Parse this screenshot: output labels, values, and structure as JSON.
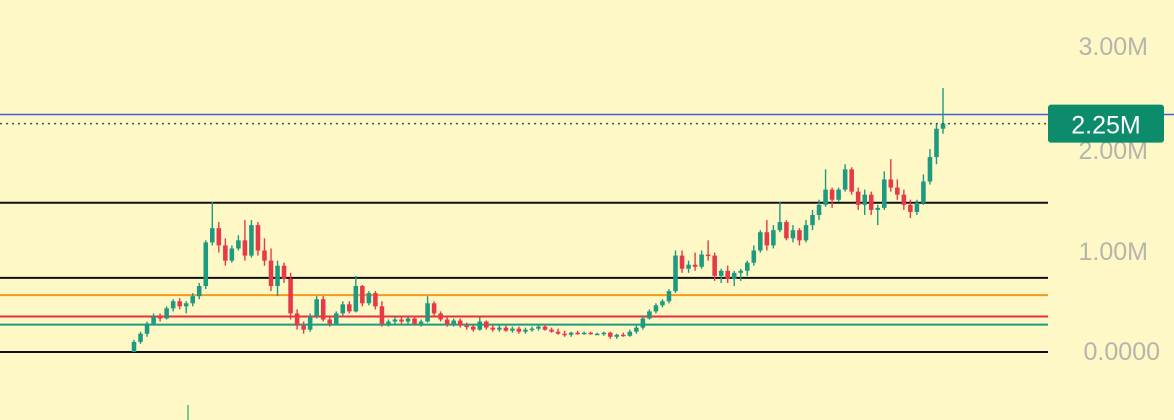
{
  "colors": {
    "background": "#fdf8c6",
    "up": "#1e9a80",
    "down": "#e63a48",
    "axis_text": "#b6b5ad",
    "current_price_line": "#3f63d8",
    "current_price_dots": "#1c6b52",
    "price_badge": "#0d8c6c",
    "level_black": "#111111",
    "level_orange": "#f59a1c",
    "level_red": "#e6303a",
    "level_green": "#1e9a80"
  },
  "chart_data": {
    "type": "candlestick",
    "ylim": [
      0,
      3.0
    ],
    "y_unit": "M",
    "y_ticks": [
      {
        "label": "3.00M",
        "value": 3.0
      },
      {
        "label": "2.00M",
        "value": 2.0
      },
      {
        "label": "1.00M",
        "value": 1.0
      },
      {
        "label": "0.0000",
        "value": 0.0
      }
    ],
    "current_price": {
      "label": "2.25M",
      "value": 2.25
    },
    "reference_lines": [
      {
        "name": "blue",
        "value": 2.34,
        "color": "#3f63d8",
        "style": "solid"
      },
      {
        "name": "black-1",
        "value": 1.47,
        "color": "#111111",
        "style": "solid"
      },
      {
        "name": "black-2",
        "value": 0.73,
        "color": "#111111",
        "style": "solid"
      },
      {
        "name": "orange",
        "value": 0.56,
        "color": "#f59a1c",
        "style": "solid"
      },
      {
        "name": "red",
        "value": 0.35,
        "color": "#e6303a",
        "style": "solid"
      },
      {
        "name": "green",
        "value": 0.27,
        "color": "#1e9a80",
        "style": "solid"
      },
      {
        "name": "black-3",
        "value": 0.0,
        "color": "#111111",
        "style": "solid"
      }
    ],
    "candles": [
      {
        "o": 0.0,
        "h": 0.12,
        "l": 0.0,
        "c": 0.1
      },
      {
        "o": 0.1,
        "h": 0.2,
        "l": 0.08,
        "c": 0.18
      },
      {
        "o": 0.18,
        "h": 0.3,
        "l": 0.15,
        "c": 0.28
      },
      {
        "o": 0.28,
        "h": 0.38,
        "l": 0.26,
        "c": 0.35
      },
      {
        "o": 0.35,
        "h": 0.38,
        "l": 0.3,
        "c": 0.33
      },
      {
        "o": 0.33,
        "h": 0.45,
        "l": 0.32,
        "c": 0.43
      },
      {
        "o": 0.43,
        "h": 0.52,
        "l": 0.4,
        "c": 0.5
      },
      {
        "o": 0.5,
        "h": 0.53,
        "l": 0.42,
        "c": 0.45
      },
      {
        "o": 0.45,
        "h": 0.5,
        "l": 0.38,
        "c": 0.48
      },
      {
        "o": 0.48,
        "h": 0.58,
        "l": 0.45,
        "c": 0.55
      },
      {
        "o": 0.55,
        "h": 0.68,
        "l": 0.52,
        "c": 0.65
      },
      {
        "o": 0.65,
        "h": 1.1,
        "l": 0.62,
        "c": 1.08
      },
      {
        "o": 1.08,
        "h": 1.48,
        "l": 1.05,
        "c": 1.22
      },
      {
        "o": 1.22,
        "h": 1.28,
        "l": 0.98,
        "c": 1.05
      },
      {
        "o": 1.05,
        "h": 1.12,
        "l": 0.85,
        "c": 0.9
      },
      {
        "o": 0.9,
        "h": 1.05,
        "l": 0.88,
        "c": 1.02
      },
      {
        "o": 1.02,
        "h": 1.15,
        "l": 1.0,
        "c": 1.1
      },
      {
        "o": 1.1,
        "h": 1.3,
        "l": 0.9,
        "c": 0.95
      },
      {
        "o": 0.95,
        "h": 1.3,
        "l": 0.93,
        "c": 1.25
      },
      {
        "o": 1.25,
        "h": 1.28,
        "l": 0.95,
        "c": 1.0
      },
      {
        "o": 1.0,
        "h": 1.12,
        "l": 0.85,
        "c": 0.9
      },
      {
        "o": 0.9,
        "h": 1.02,
        "l": 0.6,
        "c": 0.65
      },
      {
        "o": 0.65,
        "h": 0.9,
        "l": 0.55,
        "c": 0.85
      },
      {
        "o": 0.85,
        "h": 0.88,
        "l": 0.68,
        "c": 0.72
      },
      {
        "o": 0.72,
        "h": 0.78,
        "l": 0.32,
        "c": 0.38
      },
      {
        "o": 0.38,
        "h": 0.42,
        "l": 0.22,
        "c": 0.26
      },
      {
        "o": 0.26,
        "h": 0.3,
        "l": 0.18,
        "c": 0.22
      },
      {
        "o": 0.22,
        "h": 0.38,
        "l": 0.2,
        "c": 0.35
      },
      {
        "o": 0.35,
        "h": 0.55,
        "l": 0.33,
        "c": 0.52
      },
      {
        "o": 0.52,
        "h": 0.55,
        "l": 0.3,
        "c": 0.32
      },
      {
        "o": 0.32,
        "h": 0.36,
        "l": 0.25,
        "c": 0.28
      },
      {
        "o": 0.28,
        "h": 0.4,
        "l": 0.27,
        "c": 0.38
      },
      {
        "o": 0.38,
        "h": 0.5,
        "l": 0.36,
        "c": 0.47
      },
      {
        "o": 0.47,
        "h": 0.5,
        "l": 0.38,
        "c": 0.4
      },
      {
        "o": 0.4,
        "h": 0.75,
        "l": 0.39,
        "c": 0.65
      },
      {
        "o": 0.65,
        "h": 0.66,
        "l": 0.45,
        "c": 0.48
      },
      {
        "o": 0.48,
        "h": 0.6,
        "l": 0.46,
        "c": 0.58
      },
      {
        "o": 0.58,
        "h": 0.6,
        "l": 0.42,
        "c": 0.45
      },
      {
        "o": 0.45,
        "h": 0.5,
        "l": 0.25,
        "c": 0.28
      },
      {
        "o": 0.28,
        "h": 0.32,
        "l": 0.25,
        "c": 0.3
      },
      {
        "o": 0.3,
        "h": 0.35,
        "l": 0.27,
        "c": 0.32
      },
      {
        "o": 0.32,
        "h": 0.35,
        "l": 0.28,
        "c": 0.3
      },
      {
        "o": 0.3,
        "h": 0.34,
        "l": 0.27,
        "c": 0.33
      },
      {
        "o": 0.33,
        "h": 0.36,
        "l": 0.26,
        "c": 0.28
      },
      {
        "o": 0.28,
        "h": 0.32,
        "l": 0.25,
        "c": 0.3
      },
      {
        "o": 0.3,
        "h": 0.55,
        "l": 0.29,
        "c": 0.48
      },
      {
        "o": 0.48,
        "h": 0.5,
        "l": 0.35,
        "c": 0.38
      },
      {
        "o": 0.38,
        "h": 0.4,
        "l": 0.3,
        "c": 0.32
      },
      {
        "o": 0.32,
        "h": 0.35,
        "l": 0.25,
        "c": 0.27
      },
      {
        "o": 0.27,
        "h": 0.33,
        "l": 0.25,
        "c": 0.31
      },
      {
        "o": 0.31,
        "h": 0.33,
        "l": 0.24,
        "c": 0.26
      },
      {
        "o": 0.26,
        "h": 0.29,
        "l": 0.22,
        "c": 0.25
      },
      {
        "o": 0.25,
        "h": 0.27,
        "l": 0.2,
        "c": 0.22
      },
      {
        "o": 0.22,
        "h": 0.34,
        "l": 0.21,
        "c": 0.3
      },
      {
        "o": 0.3,
        "h": 0.31,
        "l": 0.22,
        "c": 0.24
      },
      {
        "o": 0.24,
        "h": 0.27,
        "l": 0.2,
        "c": 0.22
      },
      {
        "o": 0.22,
        "h": 0.26,
        "l": 0.2,
        "c": 0.24
      },
      {
        "o": 0.24,
        "h": 0.26,
        "l": 0.2,
        "c": 0.21
      },
      {
        "o": 0.21,
        "h": 0.25,
        "l": 0.19,
        "c": 0.23
      },
      {
        "o": 0.23,
        "h": 0.25,
        "l": 0.18,
        "c": 0.2
      },
      {
        "o": 0.2,
        "h": 0.24,
        "l": 0.18,
        "c": 0.22
      },
      {
        "o": 0.22,
        "h": 0.25,
        "l": 0.2,
        "c": 0.23
      },
      {
        "o": 0.23,
        "h": 0.27,
        "l": 0.21,
        "c": 0.25
      },
      {
        "o": 0.25,
        "h": 0.27,
        "l": 0.21,
        "c": 0.22
      },
      {
        "o": 0.22,
        "h": 0.24,
        "l": 0.19,
        "c": 0.2
      },
      {
        "o": 0.2,
        "h": 0.23,
        "l": 0.17,
        "c": 0.18
      },
      {
        "o": 0.18,
        "h": 0.21,
        "l": 0.15,
        "c": 0.17
      },
      {
        "o": 0.17,
        "h": 0.2,
        "l": 0.15,
        "c": 0.19
      },
      {
        "o": 0.19,
        "h": 0.21,
        "l": 0.17,
        "c": 0.18
      },
      {
        "o": 0.18,
        "h": 0.2,
        "l": 0.17,
        "c": 0.19
      },
      {
        "o": 0.19,
        "h": 0.2,
        "l": 0.17,
        "c": 0.18
      },
      {
        "o": 0.18,
        "h": 0.19,
        "l": 0.17,
        "c": 0.18
      },
      {
        "o": 0.18,
        "h": 0.2,
        "l": 0.16,
        "c": 0.19
      },
      {
        "o": 0.19,
        "h": 0.2,
        "l": 0.13,
        "c": 0.15
      },
      {
        "o": 0.15,
        "h": 0.18,
        "l": 0.13,
        "c": 0.17
      },
      {
        "o": 0.17,
        "h": 0.19,
        "l": 0.15,
        "c": 0.16
      },
      {
        "o": 0.16,
        "h": 0.22,
        "l": 0.15,
        "c": 0.2
      },
      {
        "o": 0.2,
        "h": 0.26,
        "l": 0.18,
        "c": 0.24
      },
      {
        "o": 0.24,
        "h": 0.36,
        "l": 0.22,
        "c": 0.33
      },
      {
        "o": 0.33,
        "h": 0.42,
        "l": 0.32,
        "c": 0.4
      },
      {
        "o": 0.4,
        "h": 0.48,
        "l": 0.38,
        "c": 0.46
      },
      {
        "o": 0.46,
        "h": 0.52,
        "l": 0.44,
        "c": 0.5
      },
      {
        "o": 0.5,
        "h": 0.62,
        "l": 0.48,
        "c": 0.6
      },
      {
        "o": 0.6,
        "h": 1.0,
        "l": 0.58,
        "c": 0.95
      },
      {
        "o": 0.95,
        "h": 1.0,
        "l": 0.78,
        "c": 0.82
      },
      {
        "o": 0.82,
        "h": 0.9,
        "l": 0.78,
        "c": 0.86
      },
      {
        "o": 0.86,
        "h": 0.98,
        "l": 0.8,
        "c": 0.84
      },
      {
        "o": 0.84,
        "h": 1.0,
        "l": 0.82,
        "c": 0.96
      },
      {
        "o": 0.96,
        "h": 1.1,
        "l": 0.9,
        "c": 0.95
      },
      {
        "o": 0.95,
        "h": 0.98,
        "l": 0.7,
        "c": 0.75
      },
      {
        "o": 0.75,
        "h": 0.82,
        "l": 0.68,
        "c": 0.8
      },
      {
        "o": 0.8,
        "h": 0.85,
        "l": 0.68,
        "c": 0.72
      },
      {
        "o": 0.72,
        "h": 0.8,
        "l": 0.65,
        "c": 0.78
      },
      {
        "o": 0.78,
        "h": 0.82,
        "l": 0.7,
        "c": 0.8
      },
      {
        "o": 0.8,
        "h": 0.9,
        "l": 0.75,
        "c": 0.88
      },
      {
        "o": 0.88,
        "h": 1.05,
        "l": 0.85,
        "c": 1.0
      },
      {
        "o": 1.0,
        "h": 1.2,
        "l": 0.98,
        "c": 1.18
      },
      {
        "o": 1.18,
        "h": 1.3,
        "l": 1.0,
        "c": 1.05
      },
      {
        "o": 1.05,
        "h": 1.25,
        "l": 1.02,
        "c": 1.2
      },
      {
        "o": 1.2,
        "h": 1.48,
        "l": 1.18,
        "c": 1.28
      },
      {
        "o": 1.28,
        "h": 1.3,
        "l": 1.1,
        "c": 1.12
      },
      {
        "o": 1.12,
        "h": 1.25,
        "l": 1.08,
        "c": 1.2
      },
      {
        "o": 1.2,
        "h": 1.22,
        "l": 1.05,
        "c": 1.1
      },
      {
        "o": 1.1,
        "h": 1.3,
        "l": 1.08,
        "c": 1.25
      },
      {
        "o": 1.25,
        "h": 1.4,
        "l": 1.2,
        "c": 1.35
      },
      {
        "o": 1.35,
        "h": 1.5,
        "l": 1.3,
        "c": 1.45
      },
      {
        "o": 1.45,
        "h": 1.8,
        "l": 1.43,
        "c": 1.6
      },
      {
        "o": 1.6,
        "h": 1.62,
        "l": 1.42,
        "c": 1.5
      },
      {
        "o": 1.5,
        "h": 1.62,
        "l": 1.48,
        "c": 1.6
      },
      {
        "o": 1.6,
        "h": 1.85,
        "l": 1.58,
        "c": 1.8
      },
      {
        "o": 1.8,
        "h": 1.82,
        "l": 1.55,
        "c": 1.58
      },
      {
        "o": 1.58,
        "h": 1.62,
        "l": 1.4,
        "c": 1.45
      },
      {
        "o": 1.45,
        "h": 1.6,
        "l": 1.35,
        "c": 1.55
      },
      {
        "o": 1.55,
        "h": 1.58,
        "l": 1.35,
        "c": 1.4
      },
      {
        "o": 1.4,
        "h": 1.45,
        "l": 1.25,
        "c": 1.42
      },
      {
        "o": 1.42,
        "h": 1.78,
        "l": 1.4,
        "c": 1.7
      },
      {
        "o": 1.7,
        "h": 1.9,
        "l": 1.58,
        "c": 1.62
      },
      {
        "o": 1.62,
        "h": 1.7,
        "l": 1.5,
        "c": 1.55
      },
      {
        "o": 1.55,
        "h": 1.6,
        "l": 1.4,
        "c": 1.45
      },
      {
        "o": 1.45,
        "h": 1.5,
        "l": 1.32,
        "c": 1.38
      },
      {
        "o": 1.38,
        "h": 1.5,
        "l": 1.35,
        "c": 1.47
      },
      {
        "o": 1.47,
        "h": 1.75,
        "l": 1.45,
        "c": 1.68
      },
      {
        "o": 1.68,
        "h": 2.0,
        "l": 1.65,
        "c": 1.92
      },
      {
        "o": 1.92,
        "h": 2.25,
        "l": 1.85,
        "c": 2.2
      },
      {
        "o": 2.2,
        "h": 2.6,
        "l": 2.15,
        "c": 2.25
      }
    ]
  }
}
